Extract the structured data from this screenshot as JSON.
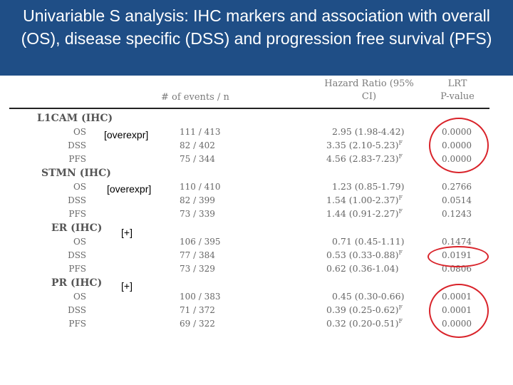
{
  "title": "Univariable S analysis: IHC markers and association with overall (OS), disease specific (DSS) and progression free survival (PFS)",
  "columns": {
    "events": "# of events / n",
    "hr_line1": "Hazard Ratio (95%",
    "hr_line2": "CI)",
    "lrt_line1": "LRT",
    "lrt_line2": "P-value"
  },
  "groups": [
    {
      "name": "L1CAM (IHC)",
      "annotation": "[overexpr]",
      "rows": [
        {
          "label": "OS",
          "events": "111 / 413",
          "hr": "2.95 (1.98-4.42)",
          "sup": "",
          "p": "0.0000"
        },
        {
          "label": "DSS",
          "events": "82 / 402",
          "hr": "3.35 (2.10-5.23)",
          "sup": "F",
          "p": "0.0000"
        },
        {
          "label": "PFS",
          "events": "75 / 344",
          "hr": "4.56 (2.83-7.23)",
          "sup": "F",
          "p": "0.0000"
        }
      ]
    },
    {
      "name": "STMN (IHC)",
      "annotation": "[overexpr]",
      "rows": [
        {
          "label": "OS",
          "events": "110 / 410",
          "hr": "1.23 (0.85-1.79)",
          "sup": "",
          "p": "0.2766"
        },
        {
          "label": "DSS",
          "events": "82 / 399",
          "hr": "1.54 (1.00-2.37)",
          "sup": "F",
          "p": "0.0514"
        },
        {
          "label": "PFS",
          "events": "73 / 339",
          "hr": "1.44 (0.91-2.27)",
          "sup": "F",
          "p": "0.1243"
        }
      ]
    },
    {
      "name": "ER (IHC)",
      "annotation": "[+]",
      "rows": [
        {
          "label": "OS",
          "events": "106 / 395",
          "hr": "0.71 (0.45-1.11)",
          "sup": "",
          "p": "0.1474"
        },
        {
          "label": "DSS",
          "events": "77 / 384",
          "hr": "0.53 (0.33-0.88)",
          "sup": "F",
          "p": "0.0191"
        },
        {
          "label": "PFS",
          "events": "73 / 329",
          "hr": "0.62 (0.36-1.04)",
          "sup": "",
          "p": "0.0806"
        }
      ]
    },
    {
      "name": "PR (IHC)",
      "annotation": "[+]",
      "rows": [
        {
          "label": "OS",
          "events": "100 / 383",
          "hr": "0.45 (0.30-0.66)",
          "sup": "",
          "p": "0.0001"
        },
        {
          "label": "DSS",
          "events": "71 / 372",
          "hr": "0.39 (0.25-0.62)",
          "sup": "F",
          "p": "0.0001"
        },
        {
          "label": "PFS",
          "events": "69 / 322",
          "hr": "0.32 (0.20-0.51)",
          "sup": "F",
          "p": "0.0000"
        }
      ]
    }
  ],
  "colors": {
    "banner": "#1f4e86",
    "highlight": "#d9232a"
  }
}
